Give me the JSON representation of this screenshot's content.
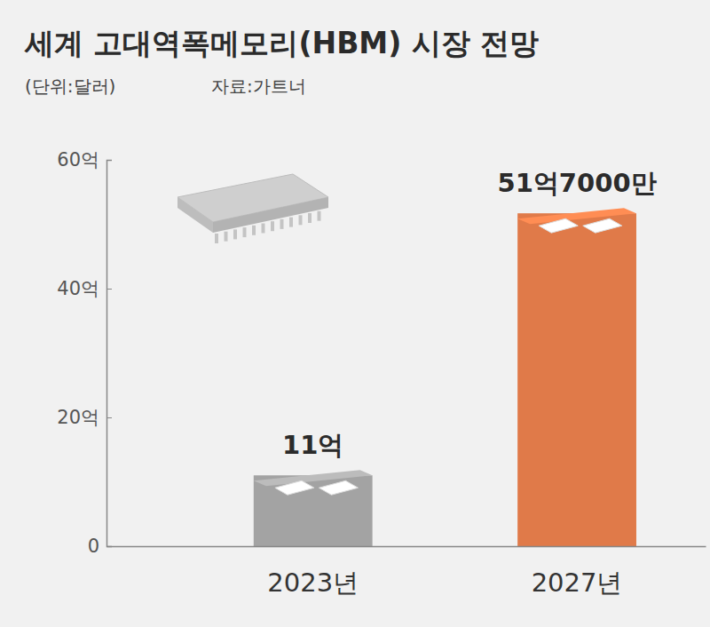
{
  "chart_data": {
    "type": "bar",
    "title": "세계 고대역폭메모리(HBM) 시장 전망",
    "subtitle": "(단위:달러)",
    "source": "자료:가트너",
    "categories": [
      "2023년",
      "2027년"
    ],
    "values": [
      11,
      51.7
    ],
    "value_labels": [
      "11억",
      "51억7000만"
    ],
    "colors": [
      "#a3a3a3",
      "#e07a49"
    ],
    "ylim": [
      0,
      60
    ],
    "yticks": [
      0,
      {
        "value": 20,
        "label": "20억"
      },
      {
        "value": 40,
        "label": "40억"
      },
      {
        "value": 60,
        "label": "60억"
      }
    ],
    "grid": false,
    "data_labels": true
  }
}
